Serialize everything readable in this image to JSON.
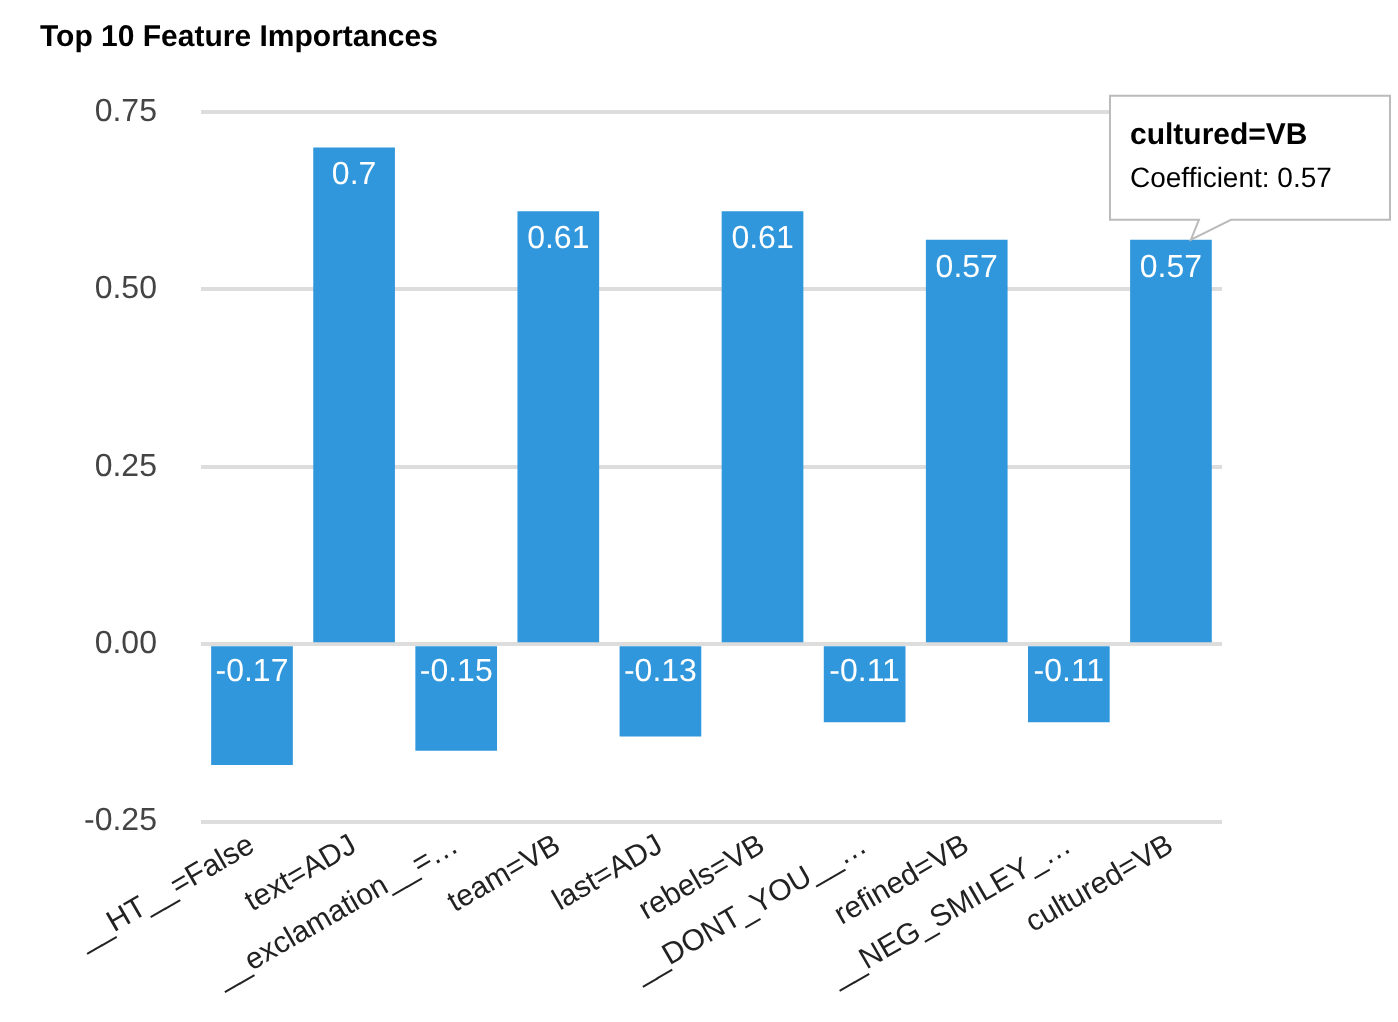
{
  "chart_data": {
    "type": "bar",
    "title": "Top 10 Feature Importances",
    "categories": [
      "__HT__=False",
      "text=ADJ",
      "__exclamation__=…",
      "team=VB",
      "last=ADJ",
      "rebels=VB",
      "__DONT_YOU__…",
      "refined=VB",
      "__NEG_SMILEY_…",
      "cultured=VB"
    ],
    "values": [
      -0.17,
      0.7,
      -0.15,
      0.61,
      -0.13,
      0.61,
      -0.11,
      0.57,
      -0.11,
      0.57
    ],
    "color": "#3097dd",
    "ylim": [
      -0.25,
      0.75
    ],
    "yticks": [
      {
        "value": -0.25,
        "label": "-0.25"
      },
      {
        "value": 0,
        "label": "0.00"
      },
      {
        "value": 0.25,
        "label": "0.25"
      },
      {
        "value": 0.5,
        "label": "0.50"
      },
      {
        "value": 0.75,
        "label": "0.75"
      }
    ],
    "grid": "y",
    "legend": false,
    "data_labels": true,
    "annotations": [
      {
        "text": "cultured=VB",
        "x": "cultured=VB",
        "y": 0.57
      },
      "Coefficient: 0.57"
    ]
  }
}
